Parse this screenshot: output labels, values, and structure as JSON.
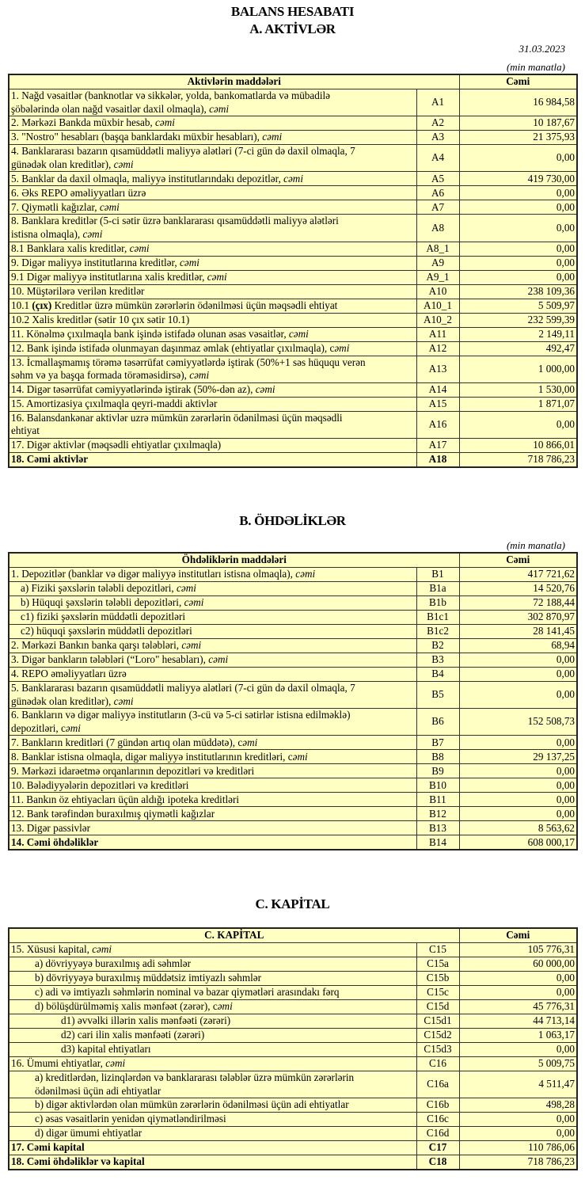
{
  "header": {
    "title": "BALANS HESABATI",
    "section_a": "A. AKTİVLƏR",
    "date": "31.03.2023",
    "unit": "(min manatla)"
  },
  "assets": {
    "col_label": "Aktivlərin   maddələri",
    "col_total": "Cəmi",
    "rows": [
      {
        "parts": [
          [
            "1. Nağd vəsaitlər (banknotlar və sikkələr, yolda, bankomatlarda və mübadilə\nşöbələrində olan nağd vəsaitlər daxil olmaqla), ",
            ""
          ],
          [
            "cəmi",
            "i"
          ]
        ],
        "code": "A1",
        "value": "16 984,58"
      },
      {
        "parts": [
          [
            "2. Mərkəzi Bankda müxbir hesab",
            ""
          ],
          [
            ", cəmi",
            "i"
          ]
        ],
        "code": "A2",
        "value": "10 187,67"
      },
      {
        "parts": [
          [
            "3. \"Nostro\" hesabları (başqa banklardakı müxbir hesabları), ",
            ""
          ],
          [
            "cəmi",
            "i"
          ]
        ],
        "code": "A3",
        "value": "21 375,93"
      },
      {
        "parts": [
          [
            "4. Banklararası bazarın qısamüddətli maliyyə alətləri (7-ci gün də daxil olmaqla, 7\ngünədək olan kreditlər), ",
            ""
          ],
          [
            "cəmi",
            "i"
          ]
        ],
        "code": "A4",
        "value": "0,00"
      },
      {
        "parts": [
          [
            "5. Banklar da daxil olmaqla, maliyyə institutlarındakı depozitlər, ",
            ""
          ],
          [
            "cəmi",
            "i"
          ]
        ],
        "code": "A5",
        "value": "419 730,00"
      },
      {
        "parts": [
          [
            "6. Əks REPO əməliyyatları üzrə",
            ""
          ]
        ],
        "code": "A6",
        "value": "0,00"
      },
      {
        "parts": [
          [
            "7. Qiymətli kağızlar, ",
            ""
          ],
          [
            "cəmi",
            "i"
          ]
        ],
        "code": "A7",
        "value": "0,00"
      },
      {
        "parts": [
          [
            "8. Banklara kreditlər (5-ci sətir üzrə banklararası qısamüddətli maliyyə alətləri\nistisna olmaqla), ",
            ""
          ],
          [
            "cəmi",
            "i"
          ]
        ],
        "code": "A8",
        "value": "0,00"
      },
      {
        "parts": [
          [
            "8.1 Banklara xalis kreditlər, ",
            ""
          ],
          [
            "cəmi",
            "i"
          ]
        ],
        "code": "A8_1",
        "value": "0,00"
      },
      {
        "parts": [
          [
            "9. Digər maliyyə institutlarına kreditlər, ",
            ""
          ],
          [
            "cəmi",
            "i"
          ]
        ],
        "code": "A9",
        "value": "0,00"
      },
      {
        "parts": [
          [
            "9.1 Digər maliyyə institutlarına xalis kreditlər, ",
            ""
          ],
          [
            "cəmi",
            "i"
          ]
        ],
        "code": "A9_1",
        "value": "0,00"
      },
      {
        "parts": [
          [
            "10. Müştərilərə verilən kreditlər",
            ""
          ]
        ],
        "code": "A10",
        "value": "238 109,36"
      },
      {
        "parts": [
          [
            "10.1 ",
            ""
          ],
          [
            "(çıx)",
            "b"
          ],
          [
            " Kreditlər üzrə mümkün zərərlərin ödənilməsi üçün məqsədli ehtiyat",
            ""
          ]
        ],
        "code": "A10_1",
        "value": "5 509,97"
      },
      {
        "parts": [
          [
            "10.2 Xalis kreditlər (sətir 10 çıx sətir 10.1)",
            ""
          ]
        ],
        "code": "A10_2",
        "value": "232 599,39"
      },
      {
        "parts": [
          [
            "11. Könəlmə çıxılmaqla bank işində istifadə olunan əsas vəsaitlər, ",
            ""
          ],
          [
            "cəmi",
            "i"
          ]
        ],
        "code": "A11",
        "value": "2 149,11"
      },
      {
        "parts": [
          [
            "12. Bank işində istifadə olunmayan daşınmaz əmlak (ehtiyatlar çıxılmaqla), c",
            ""
          ],
          [
            "əmi",
            "i"
          ]
        ],
        "code": "A12",
        "value": "492,47"
      },
      {
        "parts": [
          [
            "13. İcmallaşmamış törəmə təsərrüfat cəmiyyətlərdə iştirak (50%+1 səs hüququ verən\nsəhm və ya başqa formada törəməsidirsə), ",
            ""
          ],
          [
            "cəmi",
            "i"
          ]
        ],
        "code": "A13",
        "value": "1 000,00"
      },
      {
        "parts": [
          [
            "14. Digər təsərrüfat cəmiyyətlərində iştirak (50%-dən az), ",
            ""
          ],
          [
            "cəmi",
            "i"
          ]
        ],
        "code": "A14",
        "value": "1 530,00"
      },
      {
        "parts": [
          [
            "15. Amortizasiya çıxılmaqla qeyri-maddi aktivlər",
            ""
          ]
        ],
        "code": "A15",
        "value": "1 871,07"
      },
      {
        "parts": [
          [
            "16. Balansdankənar aktivlər uzrə mümkün zərərlərin ödənilməsi üçün məqsədli\nehtiyat",
            ""
          ]
        ],
        "code": "A16",
        "value": "0,00"
      },
      {
        "parts": [
          [
            "17. Digər aktivlər (məqsədli ehtiyatlar çıxılmaqla)",
            ""
          ]
        ],
        "code": "A17",
        "value": "10 866,01"
      },
      {
        "parts": [
          [
            "18. Cəmi aktivlər",
            "b"
          ]
        ],
        "code": "A18",
        "code_bold": true,
        "value": "718 786,23"
      }
    ]
  },
  "liabilities": {
    "title": "B. ÖHDƏLİKLƏR",
    "unit": "(min manatla)",
    "col_label": "Öhdəliklərin maddələri",
    "col_total": "Cəmi",
    "rows": [
      {
        "parts": [
          [
            "1. Depozitlər (banklar və digər maliyyə institutları istisna olmaqla), ",
            ""
          ],
          [
            "cəmi",
            "i"
          ]
        ],
        "code": "B1",
        "value": "417 721,62"
      },
      {
        "indent": 1,
        "parts": [
          [
            "a)  Fiziki şəxslərin tələbli depozitləri, ",
            ""
          ],
          [
            "cəmi",
            "i"
          ]
        ],
        "code": "B1a",
        "value": "14 520,76"
      },
      {
        "indent": 1,
        "parts": [
          [
            "b) Hüquqi şəxslərin tələbli depozitləri",
            ""
          ],
          [
            ", cəmi",
            "i"
          ]
        ],
        "code": "B1b",
        "value": "72 188,44"
      },
      {
        "indent": 1,
        "parts": [
          [
            "c1) fiziki şəxslərin müddətli depozitləri",
            ""
          ]
        ],
        "code": "B1c1",
        "value": "302 870,97"
      },
      {
        "indent": 1,
        "parts": [
          [
            "c2) hüquqi şəxslərin müddətli depozitləri",
            ""
          ]
        ],
        "code": "B1c2",
        "value": "28 141,45"
      },
      {
        "parts": [
          [
            "2. Mərkəzi Bankın banka qarşı tələbləri, ",
            ""
          ],
          [
            "cəmi",
            "i"
          ]
        ],
        "code": "B2",
        "value": "68,94"
      },
      {
        "parts": [
          [
            "3. Digər bankların tələbləri (“Loro\" hesabları), ",
            ""
          ],
          [
            "cəmi",
            "i"
          ]
        ],
        "code": "B3",
        "value": "0,00"
      },
      {
        "parts": [
          [
            "4. REPO əməliyyatları  üzrə",
            ""
          ]
        ],
        "code": "B4",
        "value": "0,00"
      },
      {
        "parts": [
          [
            "5. Banklararası bazarın qısamüddətli maliyyə alətləri (7-ci gün də daxil olmaqla, 7\ngünədək olan kreditlər), ",
            ""
          ],
          [
            "cəmi",
            "i"
          ]
        ],
        "code": "B5",
        "value": "0,00"
      },
      {
        "parts": [
          [
            "6. Bankların və digər maliyyə institutların (3-cü və 5-ci sətirlər istisna edilməklə)\ndepozitləri, c",
            ""
          ],
          [
            "əmi",
            "i"
          ]
        ],
        "code": "B6",
        "value": "152 508,73"
      },
      {
        "parts": [
          [
            "7. Bankların kreditləri (7 gündən artıq olan müddətə), c",
            ""
          ],
          [
            "əmi",
            "i"
          ]
        ],
        "code": "B7",
        "value": "0,00"
      },
      {
        "parts": [
          [
            "8. Banklar istisna olmaqla, digər maliyyə institutlarının kreditləri, c",
            ""
          ],
          [
            "əmi",
            "i"
          ]
        ],
        "code": "B8",
        "value": "29 137,25"
      },
      {
        "parts": [
          [
            "9. Mərkəzi idarəetmə orqanlarının depozitləri və kreditləri",
            ""
          ]
        ],
        "code": "B9",
        "value": "0,00"
      },
      {
        "parts": [
          [
            "10. Bələdiyyələrin depozitləri və kreditləri",
            ""
          ]
        ],
        "code": "B10",
        "value": "0,00"
      },
      {
        "parts": [
          [
            "11. Bankın öz ehtiyacları üçün aldığı ipoteka kreditləri",
            ""
          ]
        ],
        "code": "B11",
        "value": "0,00"
      },
      {
        "parts": [
          [
            "12. Bank tərəfindən buraxılmış qiymətli kağızlar",
            ""
          ]
        ],
        "code": "B12",
        "value": "0,00"
      },
      {
        "parts": [
          [
            "13. Digər passivlər",
            ""
          ]
        ],
        "code": "B13",
        "value": "8 563,62"
      },
      {
        "parts": [
          [
            "14. Cəmi öhdəliklər",
            "b"
          ]
        ],
        "code": "B14",
        "value": "608 000,17"
      }
    ]
  },
  "capital": {
    "title": "C. KAPİTAL",
    "col_label": "C. KAPİTAL",
    "col_total": "Cəmi",
    "rows": [
      {
        "parts": [
          [
            "15. Xüsusi kapital, ",
            ""
          ],
          [
            "cəmi",
            "i"
          ]
        ],
        "code": "C15",
        "value": "105 776,31"
      },
      {
        "indent": 2,
        "parts": [
          [
            "a) dövriyyəyə buraxılmış adi səhmlər",
            ""
          ]
        ],
        "code": "C15a",
        "value": "60 000,00"
      },
      {
        "indent": 2,
        "parts": [
          [
            "b) dövriyyəyə buraxılmış müddətsiz imtiyazlı səhmlər",
            ""
          ]
        ],
        "code": "C15b",
        "value": "0,00"
      },
      {
        "indent": 2,
        "parts": [
          [
            "c) adi və imtiyazlı səhmlərin nominal və bazar qiymətləri arasındakı fərq",
            ""
          ]
        ],
        "code": "C15c",
        "value": "0,00"
      },
      {
        "indent": 2,
        "parts": [
          [
            "d) bölüşdürülməmiş xalis mənfəət (zərər), c",
            ""
          ],
          [
            "əmi",
            "i"
          ]
        ],
        "code": "C15d",
        "value": "45 776,31"
      },
      {
        "indent": 3,
        "parts": [
          [
            "d1) əvvəlki illərin xalis mənfəəti (zərəri)",
            ""
          ]
        ],
        "code": "C15d1",
        "value": "44 713,14"
      },
      {
        "indent": 3,
        "parts": [
          [
            "d2) cari ilin xalis mənfəəti (zərəri)",
            ""
          ]
        ],
        "code": "C15d2",
        "value": "1 063,17"
      },
      {
        "indent": 3,
        "parts": [
          [
            "d3) kapital ehtiyatları",
            ""
          ]
        ],
        "code": "C15d3",
        "value": "0,00"
      },
      {
        "parts": [
          [
            "16. Ümumi ehtiyatlar, ",
            ""
          ],
          [
            "cəmi",
            "i"
          ]
        ],
        "code": "C16",
        "value": "5 009,75"
      },
      {
        "indent": 2,
        "parts": [
          [
            "a) kreditlərdən, lizinqlərdən və banklararası  tələblər üzrə mümkün zərərlərin\nödənilməsi üçün adi ehtiyatlar",
            ""
          ]
        ],
        "code": "C16a",
        "value": "4 511,47"
      },
      {
        "indent": 2,
        "parts": [
          [
            "b) digər aktivlərdən olan mümkün zərərlərin ödənilməsi üçün adi ehtiyatlar",
            ""
          ]
        ],
        "code": "C16b",
        "value": "498,28"
      },
      {
        "indent": 2,
        "parts": [
          [
            "c) əsas vəsaitlərin yenidən qiymətləndirilməsi",
            ""
          ]
        ],
        "code": "C16c",
        "value": "0,00"
      },
      {
        "indent": 2,
        "parts": [
          [
            "d) digər ümumi ehtiyatlar",
            ""
          ]
        ],
        "code": "C16d",
        "value": "0,00"
      },
      {
        "parts": [
          [
            "17. Cəmi kapital",
            "b"
          ]
        ],
        "code": "C17",
        "code_bold": true,
        "value": "110 786,06"
      },
      {
        "parts": [
          [
            "18. Cəmi öhdəliklər və kapital",
            "b"
          ]
        ],
        "code": "C18",
        "code_bold": true,
        "value": "718 786,23"
      }
    ]
  },
  "colors": {
    "table_background": "#ffffc4",
    "border": "#333333"
  }
}
